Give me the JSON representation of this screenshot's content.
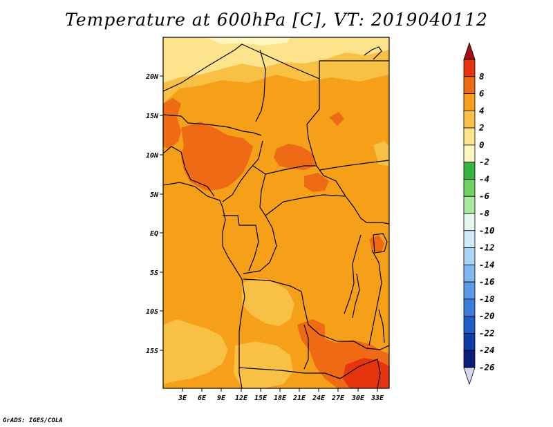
{
  "title": "Temperature at 600hPa [C], VT: 2019040112",
  "footer": "GrADS: IGES/COLA",
  "map": {
    "lon_labels": [
      "3E",
      "6E",
      "9E",
      "12E",
      "15E",
      "18E",
      "21E",
      "24E",
      "27E",
      "30E",
      "33E"
    ],
    "lat_labels": [
      "20N",
      "15N",
      "10N",
      "5N",
      "EQ",
      "5S",
      "10S",
      "15S"
    ]
  },
  "colorbar": {
    "labels": [
      "8",
      "6",
      "4",
      "2",
      "0",
      "-2",
      "-4",
      "-6",
      "-8",
      "-10",
      "-12",
      "-14",
      "-16",
      "-18",
      "-20",
      "-22",
      "-24",
      "-26"
    ],
    "colors": [
      "#a50f15",
      "#e6340f",
      "#ee6a14",
      "#f5a018",
      "#f8c045",
      "#fde38c",
      "#fff6bf",
      "#35b43e",
      "#6ed265",
      "#a7e9a0",
      "#e3f7ec",
      "#d2ebfa",
      "#a9d4f7",
      "#7fb8ef",
      "#5a9ae8",
      "#3a7ddb",
      "#1f5ec9",
      "#0f3da6",
      "#0b1f7a",
      "#d8d8f2"
    ]
  }
}
